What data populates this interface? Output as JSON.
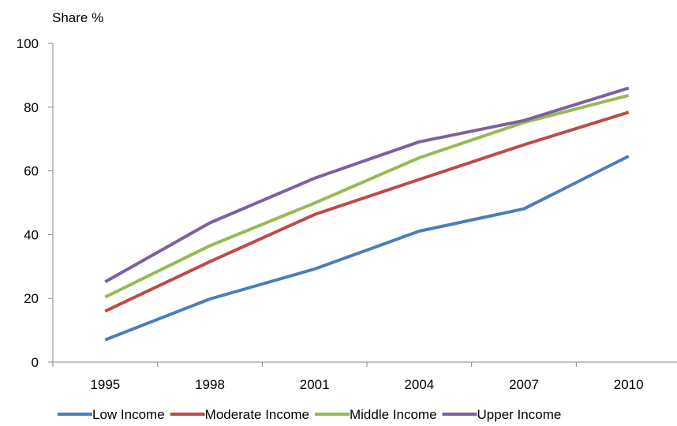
{
  "chart_data": {
    "type": "line",
    "title": "",
    "xlabel": "",
    "ylabel": "Share %",
    "categories": [
      "1995",
      "1998",
      "2001",
      "2004",
      "2007",
      "2010"
    ],
    "ylim": [
      0,
      100
    ],
    "yticks": [
      0,
      20,
      40,
      60,
      80,
      100
    ],
    "grid": false,
    "legend_position": "bottom",
    "series": [
      {
        "name": "Low Income",
        "color": "#4a7ebb",
        "values": [
          7,
          19.8,
          29.2,
          41.1,
          48.1,
          64.6
        ]
      },
      {
        "name": "Moderate Income",
        "color": "#be4b48",
        "values": [
          16,
          31.5,
          46.3,
          57.3,
          68.2,
          78.4
        ]
      },
      {
        "name": "Middle Income",
        "color": "#98b954",
        "values": [
          20.4,
          36.5,
          49.9,
          64.1,
          75.2,
          83.7
        ]
      },
      {
        "name": "Upper Income",
        "color": "#7d60a0",
        "values": [
          25.2,
          43.7,
          57.7,
          69.1,
          75.8,
          86
        ]
      }
    ]
  }
}
